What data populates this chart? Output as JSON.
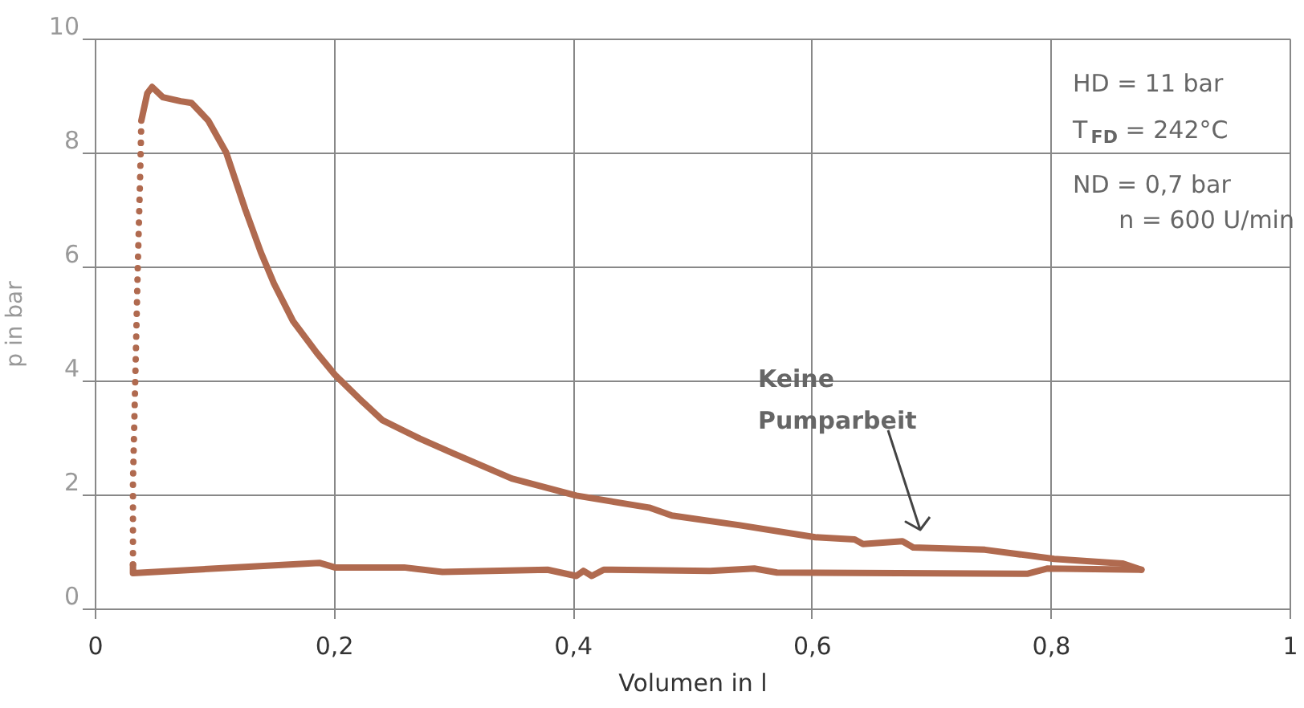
{
  "chart_data": {
    "type": "line",
    "xlabel": "Volumen in l",
    "ylabel": "p in bar",
    "xlim": [
      0,
      1
    ],
    "ylim": [
      0,
      10
    ],
    "xticks": [
      0,
      {
        "value": 0.2,
        "label": "0,2"
      },
      {
        "value": 0.4,
        "label": "0,4"
      },
      {
        "value": 0.6,
        "label": "0,6"
      },
      {
        "value": 0.8,
        "label": "0,8"
      },
      1
    ],
    "yticks": [
      0,
      2,
      4,
      6,
      8,
      10
    ],
    "grid": true,
    "marker": "none",
    "series": [
      {
        "color": "#b06a4f",
        "line_style": "dotted",
        "x": [
          0.032,
          0.032,
          0.036,
          0.038,
          0.039
        ],
        "values": [
          0.77,
          2.22,
          5.98,
          7.58,
          8.56
        ]
      },
      {
        "color": "#b06a4f",
        "line_style": "solid",
        "x": [
          0.039,
          0.044,
          0.048,
          0.057,
          0.072,
          0.081,
          0.095,
          0.11,
          0.126,
          0.139,
          0.15,
          0.166,
          0.186,
          0.201,
          0.224,
          0.241,
          0.272,
          0.299,
          0.349,
          0.403,
          0.464,
          0.483,
          0.54,
          0.603,
          0.636,
          0.643,
          0.676,
          0.685,
          0.745,
          0.803,
          0.86,
          0.876
        ],
        "values": [
          8.56,
          9.04,
          9.15,
          8.97,
          8.9,
          8.87,
          8.56,
          8.0,
          7.0,
          6.25,
          5.7,
          5.04,
          4.48,
          4.1,
          3.63,
          3.3,
          2.98,
          2.73,
          2.28,
          1.98,
          1.77,
          1.63,
          1.46,
          1.25,
          1.21,
          1.13,
          1.18,
          1.07,
          1.03,
          0.87,
          0.79,
          0.68
        ]
      },
      {
        "color": "#b06a4f",
        "line_style": "solid",
        "x": [
          0.876,
          0.797,
          0.781,
          0.571,
          0.552,
          0.515,
          0.426,
          0.416,
          0.409,
          0.403,
          0.379,
          0.291,
          0.259,
          0.201,
          0.188,
          0.032,
          0.032
        ],
        "values": [
          0.68,
          0.7,
          0.61,
          0.63,
          0.7,
          0.66,
          0.68,
          0.57,
          0.66,
          0.57,
          0.68,
          0.64,
          0.72,
          0.72,
          0.8,
          0.62,
          0.77
        ]
      }
    ],
    "annotations": [
      "HD = 11 bar",
      "T$_{FD}$ = 242°C",
      "ND = 0,7 bar",
      "n = 600 U/min",
      "Keine Pumparbeit"
    ]
  }
}
